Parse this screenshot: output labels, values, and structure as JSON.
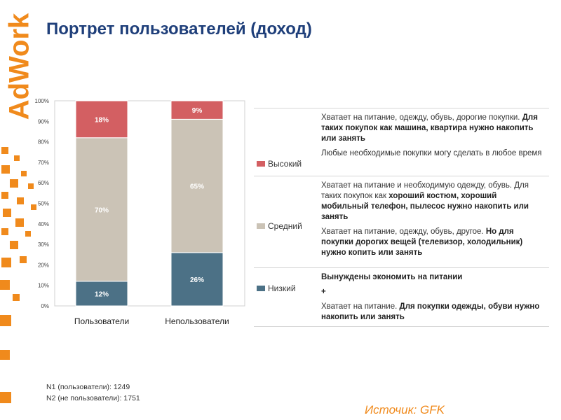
{
  "logo": {
    "text": "AdWork"
  },
  "title": "Портрет пользователей (доход)",
  "colors": {
    "high": "#d35f62",
    "mid": "#cbc3b6",
    "low": "#4c7186",
    "accent": "#f08a1c",
    "title": "#1f3f7a"
  },
  "chart_data": {
    "type": "bar",
    "stacked": true,
    "categories": [
      "Пользователи",
      "Непользователи"
    ],
    "series": [
      {
        "name": "Низкий",
        "values": [
          12,
          26
        ],
        "labels": [
          "12%",
          "26%"
        ]
      },
      {
        "name": "Средний",
        "values": [
          70,
          65
        ],
        "labels": [
          "70%",
          "65%"
        ]
      },
      {
        "name": "Высокий",
        "values": [
          18,
          9
        ],
        "labels": [
          "18%",
          "9%"
        ]
      }
    ],
    "yticks": [
      "0%",
      "10%",
      "20%",
      "30%",
      "40%",
      "50%",
      "60%",
      "70%",
      "80%",
      "90%",
      "100%"
    ],
    "ylim": [
      0,
      100
    ],
    "xlabel": "",
    "ylabel": ""
  },
  "legend": {
    "high": {
      "label": "Высокий",
      "text1": "Хватает на питание, одежду, обувь, дорогие покупки.",
      "text1_bold": "Для таких покупок как машина, квартира нужно накопить или занять",
      "text2": "Любые необходимые покупки могу сделать в любое время"
    },
    "mid": {
      "label": "Средний",
      "text1": "Хватает на питание и необходимую одежду, обувь. Для таких покупок как",
      "text1_bold": "хороший костюм, хороший мобильный телефон, пылесос нужно накопить или занять",
      "text2": "Хватает на питание, одежду, обувь, другое.",
      "text2_bold": "Но для покупки дорогих вещей (телевизор, холодильник) нужно копить или занять"
    },
    "low": {
      "label": "Низкий",
      "text1": "Вынуждены экономить на питании",
      "plus": "+",
      "text2": "Хватает на питание.",
      "text2_bold": "Для покупки одежды, обуви нужно накопить или занять"
    }
  },
  "notes": {
    "n1": "N1 (пользователи): 1249",
    "n2": "N2 (не пользователи): 1751"
  },
  "source": "Источик: GFK"
}
